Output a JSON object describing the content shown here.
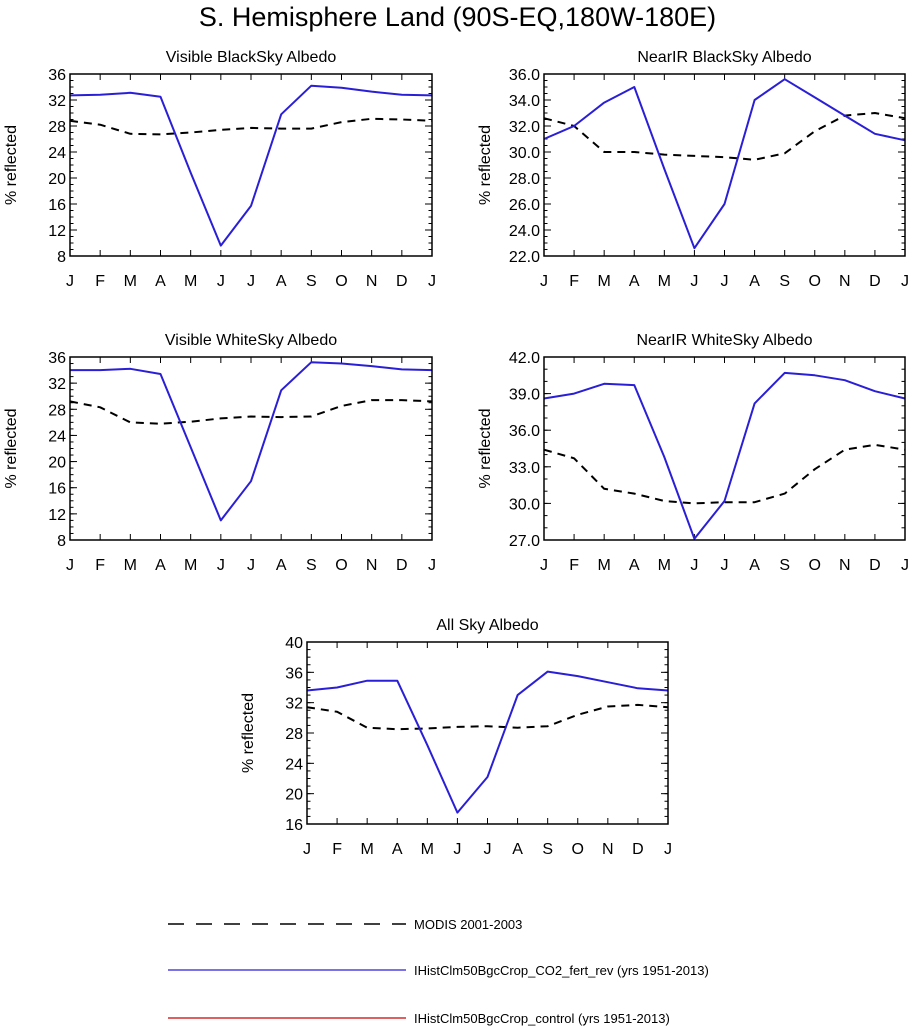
{
  "title": "S. Hemisphere Land (90S-EQ,180W-180E)",
  "series_styles": {
    "modis": {
      "color": "#000000",
      "dash": "8,6"
    },
    "fert": {
      "color": "#2a1fd6",
      "dash": ""
    }
  },
  "legend": [
    {
      "label": "MODIS 2001-2003",
      "color": "#000000",
      "style": "dashed"
    },
    {
      "label": "IHistClm50BgcCrop_CO2_fert_rev (yrs 1951-2013)",
      "color": "#2a1fd6",
      "style": "solid"
    },
    {
      "label": "IHistClm50BgcCrop_control (yrs 1951-2013)",
      "color": "#cc0000",
      "style": "solid"
    }
  ],
  "chart_data": [
    {
      "type": "line",
      "title": "Visible BlackSky Albedo",
      "ylabel": "% reflected",
      "categories": [
        "J",
        "F",
        "M",
        "A",
        "M",
        "J",
        "J",
        "A",
        "S",
        "O",
        "N",
        "D",
        "J"
      ],
      "ylim": [
        8,
        36
      ],
      "yticks": [
        "8",
        "12",
        "16",
        "20",
        "24",
        "28",
        "32",
        "36"
      ],
      "series": [
        {
          "name": "MODIS 2001-2003",
          "values": [
            28.8,
            28.2,
            26.8,
            26.7,
            27.0,
            27.4,
            27.7,
            27.6,
            27.6,
            28.6,
            29.1,
            29.0,
            28.8
          ]
        },
        {
          "name": "IHistClm50BgcCrop_CO2_fert_rev (yrs 1951-2013)",
          "values": [
            32.7,
            32.8,
            33.1,
            32.5,
            20.8,
            9.6,
            15.7,
            29.8,
            34.2,
            33.9,
            33.3,
            32.8,
            32.7
          ]
        }
      ]
    },
    {
      "type": "line",
      "title": "NearIR BlackSky Albedo",
      "ylabel": "% reflected",
      "categories": [
        "J",
        "F",
        "M",
        "A",
        "M",
        "J",
        "J",
        "A",
        "S",
        "O",
        "N",
        "D",
        "J"
      ],
      "ylim": [
        22,
        36
      ],
      "yticks": [
        "22.0",
        "24.0",
        "26.0",
        "28.0",
        "30.0",
        "32.0",
        "34.0",
        "36.0"
      ],
      "series": [
        {
          "name": "MODIS 2001-2003",
          "values": [
            32.6,
            32.0,
            30.0,
            30.0,
            29.8,
            29.7,
            29.6,
            29.4,
            29.9,
            31.6,
            32.8,
            33.0,
            32.6
          ]
        },
        {
          "name": "IHistClm50BgcCrop_CO2_fert_rev (yrs 1951-2013)",
          "values": [
            31.0,
            32.0,
            33.8,
            35.0,
            28.7,
            22.6,
            26.0,
            34.0,
            35.6,
            34.2,
            32.8,
            31.4,
            30.9
          ]
        }
      ]
    },
    {
      "type": "line",
      "title": "Visible WhiteSky Albedo",
      "ylabel": "% reflected",
      "categories": [
        "J",
        "F",
        "M",
        "A",
        "M",
        "J",
        "J",
        "A",
        "S",
        "O",
        "N",
        "D",
        "J"
      ],
      "ylim": [
        8,
        36
      ],
      "yticks": [
        "8",
        "12",
        "16",
        "20",
        "24",
        "28",
        "32",
        "36"
      ],
      "series": [
        {
          "name": "MODIS 2001-2003",
          "values": [
            29.2,
            28.3,
            26.0,
            25.8,
            26.1,
            26.6,
            26.9,
            26.8,
            26.9,
            28.5,
            29.4,
            29.4,
            29.2
          ]
        },
        {
          "name": "IHistClm50BgcCrop_CO2_fert_rev (yrs 1951-2013)",
          "values": [
            34.0,
            34.0,
            34.2,
            33.4,
            22.2,
            11.0,
            17.0,
            30.9,
            35.2,
            35.0,
            34.6,
            34.1,
            34.0
          ]
        }
      ]
    },
    {
      "type": "line",
      "title": "NearIR WhiteSky Albedo",
      "ylabel": "% reflected",
      "categories": [
        "J",
        "F",
        "M",
        "A",
        "M",
        "J",
        "J",
        "A",
        "S",
        "O",
        "N",
        "D",
        "J"
      ],
      "ylim": [
        27,
        42
      ],
      "yticks": [
        "27.0",
        "30.0",
        "33.0",
        "36.0",
        "39.0",
        "42.0"
      ],
      "series": [
        {
          "name": "MODIS 2001-2003",
          "values": [
            34.4,
            33.7,
            31.2,
            30.8,
            30.2,
            30.0,
            30.1,
            30.1,
            30.8,
            32.8,
            34.4,
            34.8,
            34.4
          ]
        },
        {
          "name": "IHistClm50BgcCrop_CO2_fert_rev (yrs 1951-2013)",
          "values": [
            38.6,
            39.0,
            39.8,
            39.7,
            33.8,
            27.1,
            30.2,
            38.2,
            40.7,
            40.5,
            40.1,
            39.2,
            38.6
          ]
        }
      ]
    },
    {
      "type": "line",
      "title": "All Sky Albedo",
      "ylabel": "% reflected",
      "categories": [
        "J",
        "F",
        "M",
        "A",
        "M",
        "J",
        "J",
        "A",
        "S",
        "O",
        "N",
        "D",
        "J"
      ],
      "ylim": [
        16,
        40
      ],
      "yticks": [
        "16",
        "20",
        "24",
        "28",
        "32",
        "36",
        "40"
      ],
      "series": [
        {
          "name": "MODIS 2001-2003",
          "values": [
            31.4,
            30.8,
            28.7,
            28.5,
            28.6,
            28.8,
            28.9,
            28.7,
            28.9,
            30.4,
            31.5,
            31.7,
            31.4
          ]
        },
        {
          "name": "IHistClm50BgcCrop_CO2_fert_rev (yrs 1951-2013)",
          "values": [
            33.6,
            34.0,
            34.9,
            34.9,
            26.4,
            17.5,
            22.2,
            33.0,
            36.1,
            35.5,
            34.7,
            33.9,
            33.6
          ]
        }
      ]
    }
  ]
}
